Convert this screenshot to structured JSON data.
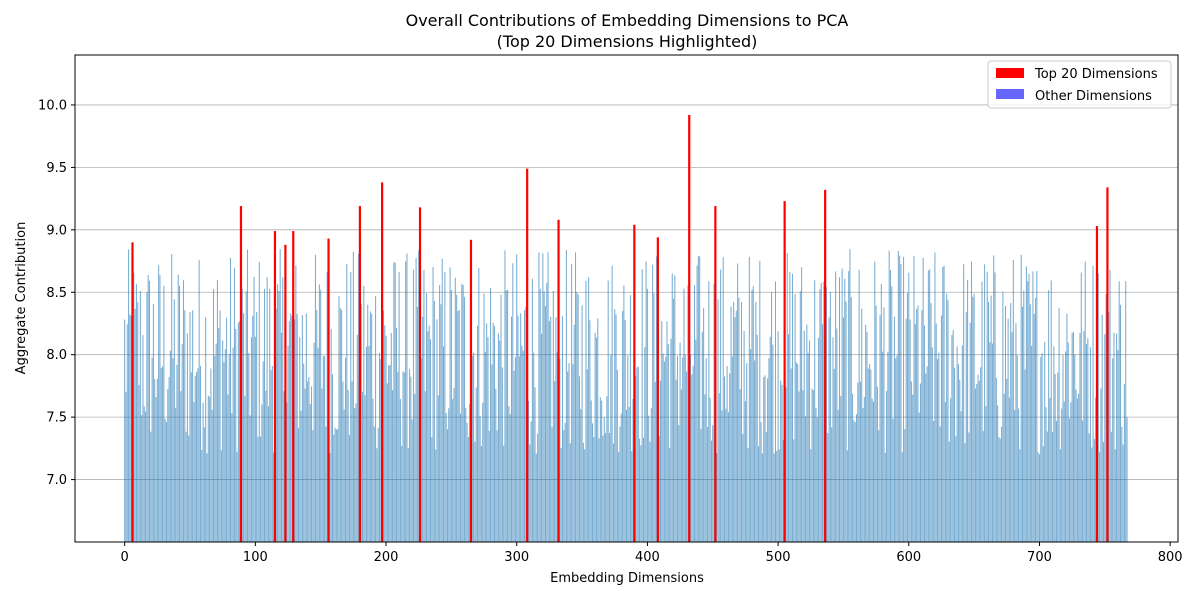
{
  "chart_data": {
    "type": "bar",
    "title": "Overall Contributions of Embedding Dimensions to PCA",
    "subtitle": "(Top 20 Dimensions Highlighted)",
    "xlabel": "Embedding Dimensions",
    "ylabel": "Aggregate Contribution",
    "xlim": [
      -38,
      806
    ],
    "ylim": [
      6.5,
      10.4
    ],
    "xticks": [
      0,
      100,
      200,
      300,
      400,
      500,
      600,
      700,
      800
    ],
    "yticks": [
      7.0,
      7.5,
      8.0,
      8.5,
      9.0,
      9.5,
      10.0
    ],
    "ytick_labels": [
      "7.0",
      "7.5",
      "8.0",
      "8.5",
      "9.0",
      "9.5",
      "10.0"
    ],
    "grid": "horizontal",
    "legend_position": "top-right",
    "num_dimensions": 768,
    "series": [
      {
        "name": "Top 20 Dimensions",
        "color": "#ff0000",
        "points": [
          {
            "x": 6,
            "y": 8.9
          },
          {
            "x": 89,
            "y": 9.19
          },
          {
            "x": 115,
            "y": 8.99
          },
          {
            "x": 123,
            "y": 8.88
          },
          {
            "x": 129,
            "y": 8.99
          },
          {
            "x": 156,
            "y": 8.93
          },
          {
            "x": 180,
            "y": 9.19
          },
          {
            "x": 197,
            "y": 9.38
          },
          {
            "x": 226,
            "y": 9.18
          },
          {
            "x": 265,
            "y": 8.92
          },
          {
            "x": 308,
            "y": 9.49
          },
          {
            "x": 332,
            "y": 9.08
          },
          {
            "x": 390,
            "y": 9.04
          },
          {
            "x": 408,
            "y": 8.94
          },
          {
            "x": 432,
            "y": 9.92
          },
          {
            "x": 452,
            "y": 9.19
          },
          {
            "x": 505,
            "y": 9.23
          },
          {
            "x": 536,
            "y": 9.32
          },
          {
            "x": 744,
            "y": 9.03
          },
          {
            "x": 752,
            "y": 9.34
          }
        ]
      },
      {
        "name": "Other Dimensions",
        "color": "#1f77b4",
        "legend_color": "#6666ff",
        "opacity": 0.6,
        "value_range": [
          7.2,
          8.85
        ]
      }
    ]
  }
}
